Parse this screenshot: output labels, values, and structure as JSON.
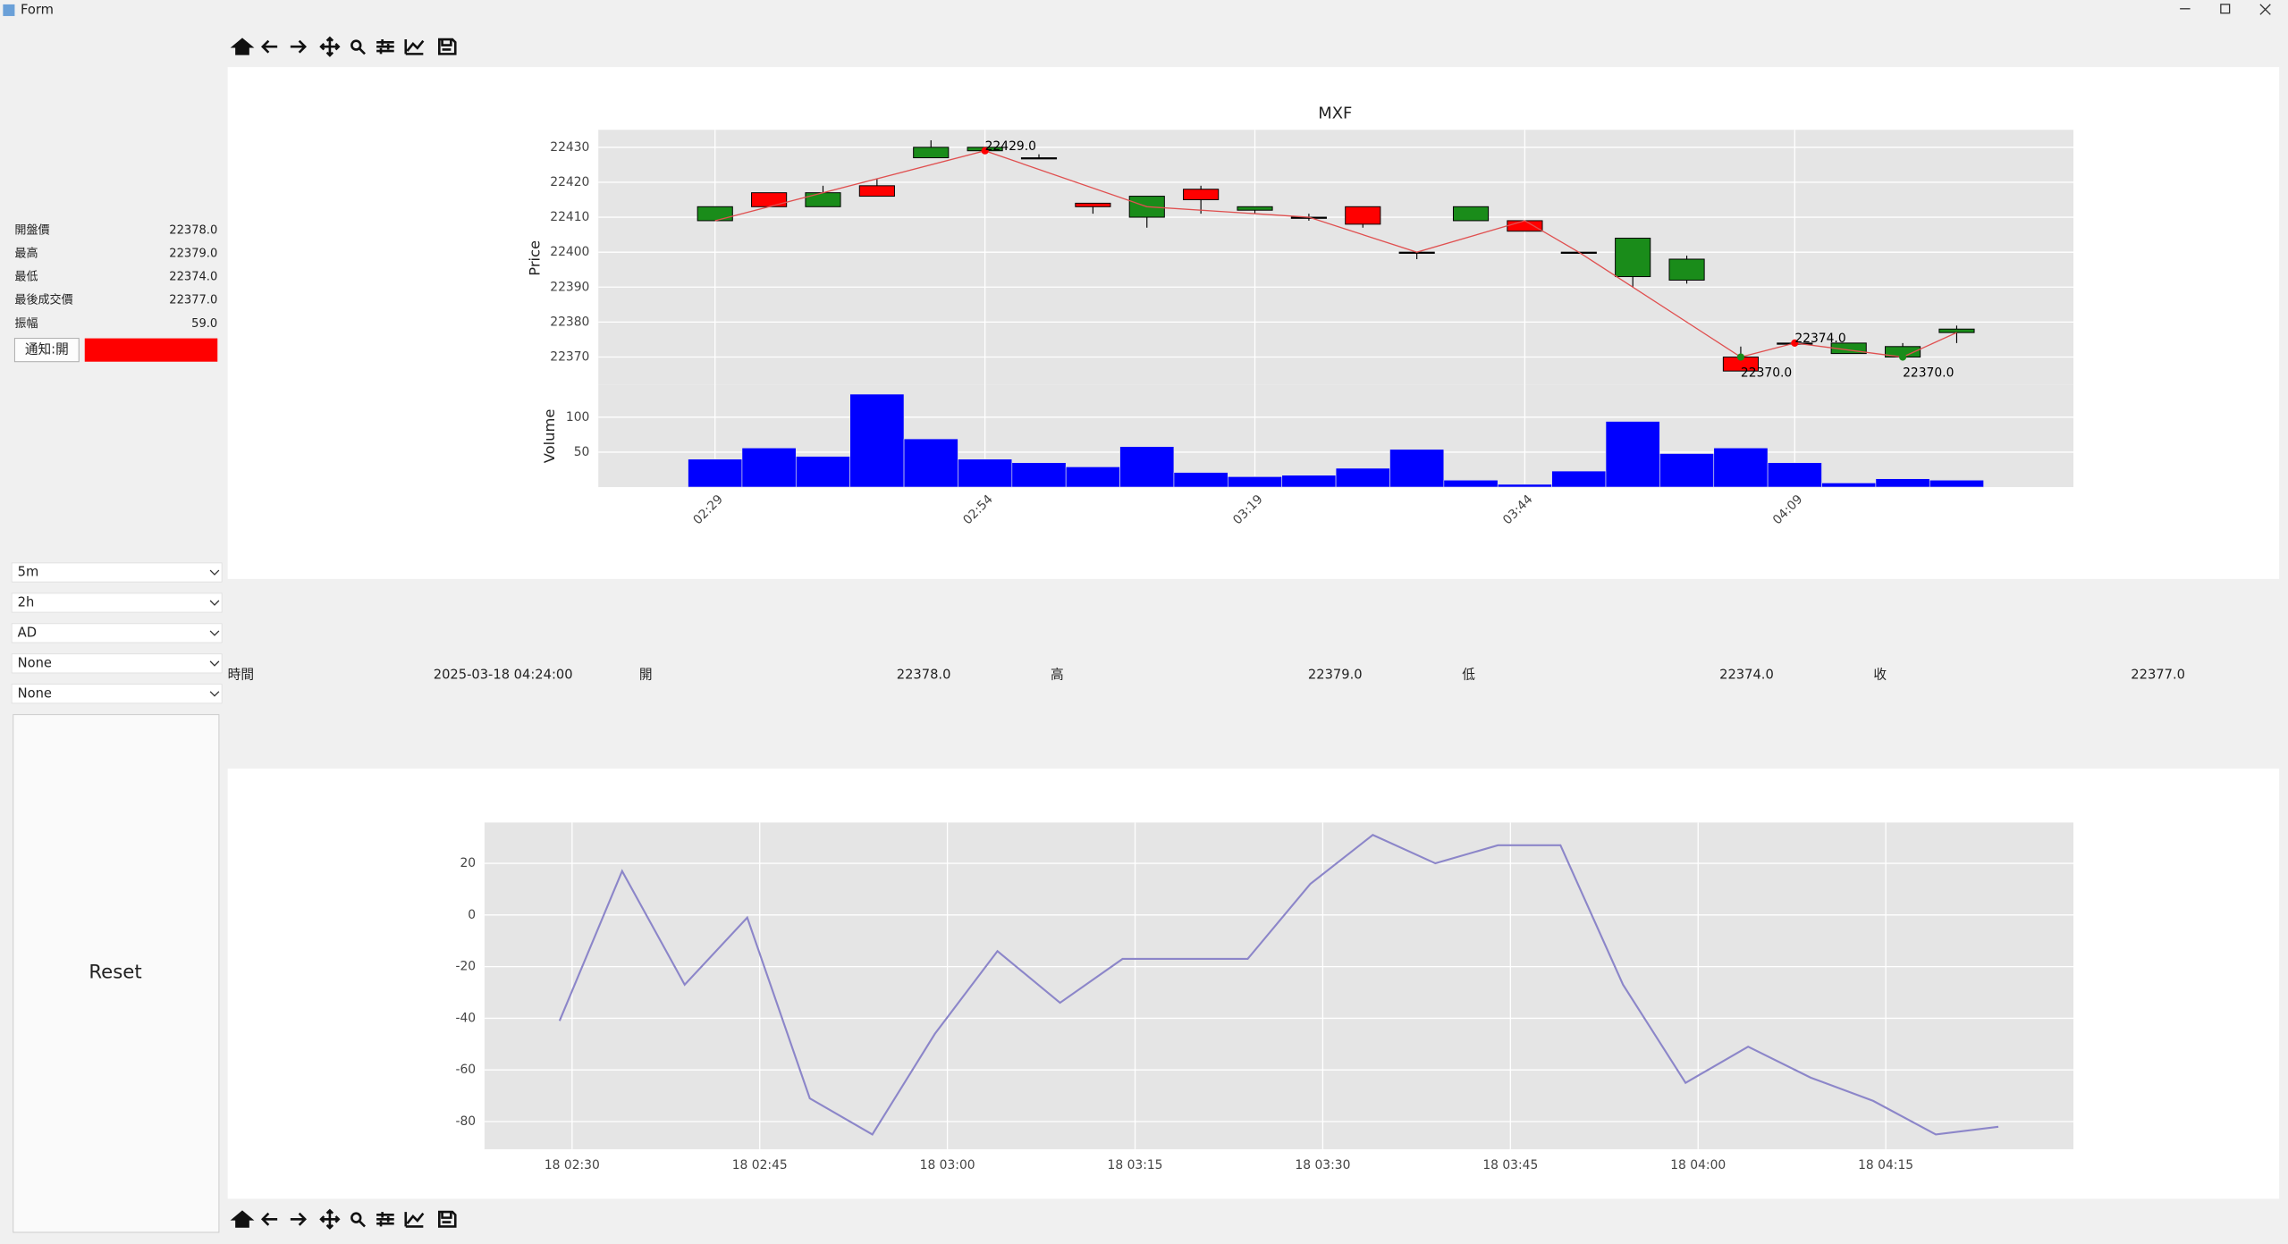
{
  "window": {
    "title": "Form"
  },
  "sidebar": {
    "quote": [
      {
        "label": "開盤價",
        "value": "22378.0"
      },
      {
        "label": "最高",
        "value": "22379.0"
      },
      {
        "label": "最低",
        "value": "22374.0"
      },
      {
        "label": "最後成交價",
        "value": "22377.0"
      },
      {
        "label": "振幅",
        "value": "59.0"
      }
    ],
    "notify_button": "通知:開",
    "dropdowns": [
      "5m",
      "2h",
      "AD",
      "None",
      "None"
    ],
    "reset_button": "Reset"
  },
  "info_row": [
    {
      "label": "時間",
      "value": "2025-03-18 04:24:00"
    },
    {
      "label": "開",
      "value": "22378.0"
    },
    {
      "label": "高",
      "value": "22379.0"
    },
    {
      "label": "低",
      "value": "22374.0"
    },
    {
      "label": "收",
      "value": "22377.0"
    }
  ],
  "chart_data": [
    {
      "type": "candlestick",
      "title": "MXF",
      "ylabel": "Price",
      "categories": [
        "02:29",
        null,
        null,
        null,
        null,
        "02:54",
        null,
        null,
        null,
        null,
        "03:19",
        null,
        null,
        null,
        null,
        "03:44",
        null,
        null,
        null,
        null,
        "04:09",
        null,
        null,
        null
      ],
      "open": [
        22413,
        22413,
        22417,
        22416,
        22430,
        22430,
        22427,
        22413,
        22416,
        22415,
        22413,
        22410,
        22408,
        22400,
        22413,
        22406,
        22400,
        22404,
        22398,
        22366,
        22374,
        22374,
        22373,
        22378
      ],
      "high": [
        22413,
        22417,
        22419,
        22421,
        22432,
        22430,
        22428,
        22414,
        22416,
        22419,
        22413,
        22411,
        22413,
        22400,
        22413,
        22409,
        22400,
        22404,
        22399,
        22373,
        22374,
        22374,
        22374,
        22379
      ],
      "low": [
        22409,
        22413,
        22413,
        22416,
        22427,
        22429,
        22427,
        22411,
        22407,
        22411,
        22411,
        22409,
        22407,
        22398,
        22409,
        22406,
        22400,
        22390,
        22391,
        22366,
        22374,
        22371,
        22369,
        22374
      ],
      "close": [
        22409,
        22417,
        22413,
        22419,
        22427,
        22429,
        22427,
        22414,
        22410,
        22418,
        22412,
        22410,
        22413,
        22400,
        22409,
        22409,
        22400,
        22393,
        22392,
        22370,
        22374,
        22371,
        22370,
        22377
      ],
      "up_color": "#ff0000",
      "down_color": "#1a8c1a",
      "ylim": [
        22362,
        22435
      ],
      "yticks": [
        22370,
        22380,
        22390,
        22400,
        22410,
        22420,
        22430
      ],
      "grid": true,
      "line": {
        "color": "#e05050",
        "x": [
          0,
          5,
          8,
          11,
          13,
          15,
          16,
          19,
          20,
          22,
          23
        ],
        "values": [
          22409,
          22429,
          22413,
          22410,
          22400,
          22409,
          22400,
          22370,
          22374,
          22370,
          22377
        ]
      },
      "annotations": [
        {
          "x": 5,
          "value": 22429,
          "label": "22429.0",
          "color": "#ff0000"
        },
        {
          "x": 19,
          "value": 22370,
          "label": "22370.0",
          "color": "#1a8c1a"
        },
        {
          "x": 20,
          "value": 22374,
          "label": "22374.0",
          "color": "#ff0000"
        },
        {
          "x": 22,
          "value": 22370,
          "label": "22370.0",
          "color": "#1a8c1a"
        }
      ],
      "volume": {
        "ylabel": "Volume",
        "values": [
          40,
          56,
          44,
          133,
          69,
          40,
          35,
          29,
          58,
          21,
          15,
          17,
          27,
          54,
          10,
          4,
          23,
          94,
          48,
          56,
          35,
          6,
          12,
          10
        ],
        "color": "#0000ff",
        "ylim": [
          0,
          146
        ],
        "yticks": [
          50,
          100
        ]
      }
    },
    {
      "type": "line",
      "x": [
        "18 02:29",
        "18 02:34",
        "18 02:39",
        "18 02:44",
        "18 02:49",
        "18 02:54",
        "18 02:59",
        "18 03:04",
        "18 03:09",
        "18 03:14",
        "18 03:19",
        "18 03:24",
        "18 03:29",
        "18 03:34",
        "18 03:39",
        "18 03:44",
        "18 03:49",
        "18 03:54",
        "18 03:59",
        "18 04:04",
        "18 04:09",
        "18 04:14",
        "18 04:19",
        "18 04:24"
      ],
      "series": [
        {
          "color": "#8c86c9",
          "values": [
            -41,
            17,
            -27,
            -1,
            -71,
            -85,
            -46,
            -14,
            -34,
            -17,
            -17,
            -17,
            12,
            31,
            20,
            27,
            27,
            -27,
            -65,
            -51,
            -63,
            -72,
            -85,
            -82
          ]
        }
      ],
      "xlim": [
        "18 02:23",
        "18 04:30"
      ],
      "xticks": [
        "18 02:30",
        "18 02:45",
        "18 03:00",
        "18 03:15",
        "18 03:30",
        "18 03:45",
        "18 04:00",
        "18 04:15"
      ],
      "ylim": [
        -90.7,
        35.8
      ],
      "yticks": [
        -80,
        -60,
        -40,
        -20,
        0,
        20
      ],
      "grid": true
    }
  ]
}
